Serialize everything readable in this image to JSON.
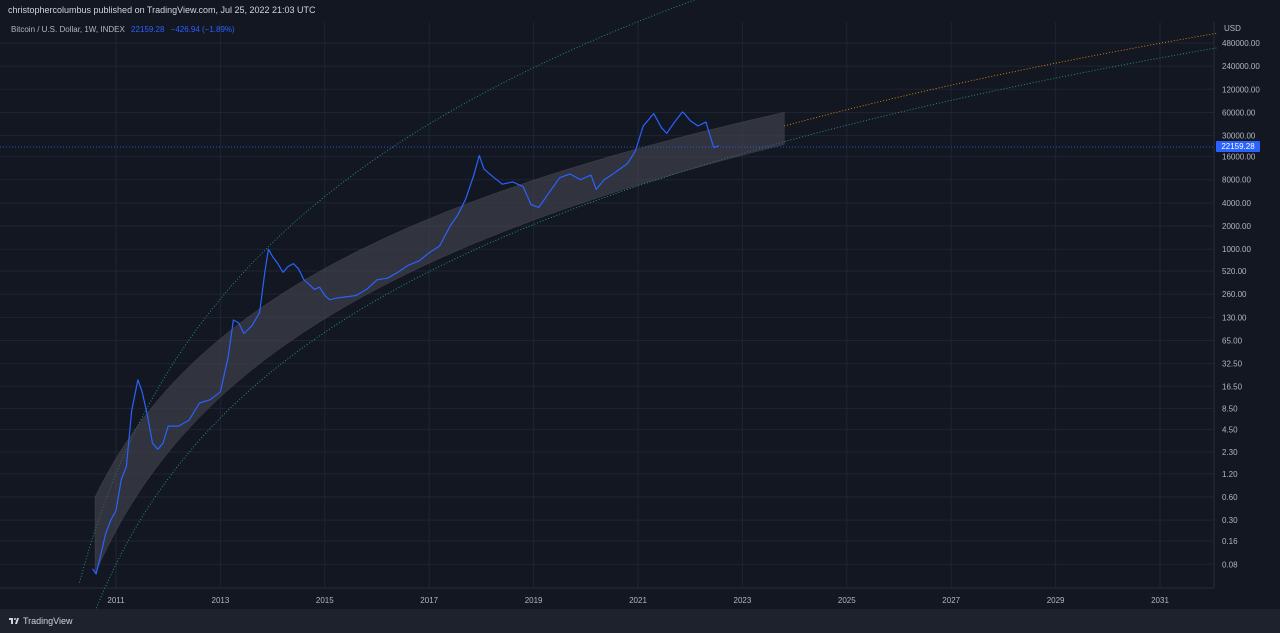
{
  "header": {
    "published": "christophercolumbus published on TradingView.com, Jul 25, 2022 21:03 UTC"
  },
  "legend": {
    "symbol": "Bitcoin / U.S. Dollar, 1W, INDEX",
    "price": "22159.28",
    "change": "−426.94 (−1.89%)"
  },
  "price_axis": {
    "currency": "USD",
    "last_price_label": "22159.28"
  },
  "footer": {
    "brand": "TradingView"
  },
  "colors": {
    "background": "#131722",
    "price_line": "#2962ff",
    "band_fill": "#4a4a55",
    "upper_curve": "#26a69a",
    "mid_curve": "#ff9800",
    "grid": "#1f2433"
  },
  "chart_data": {
    "type": "line",
    "scale": "log",
    "y_ticks": [
      "480000.00",
      "240000.00",
      "120000.00",
      "60000.00",
      "30000.00",
      "16000.00",
      "8000.00",
      "4000.00",
      "2000.00",
      "1000.00",
      "520.00",
      "260.00",
      "130.00",
      "65.00",
      "32.50",
      "16.50",
      "8.50",
      "4.50",
      "2.30",
      "1.20",
      "0.60",
      "0.30",
      "0.16",
      "0.08"
    ],
    "x_ticks": [
      "2011",
      "2013",
      "2015",
      "2017",
      "2019",
      "2021",
      "2023",
      "2025",
      "2027",
      "2029",
      "2031"
    ],
    "series": [
      {
        "x": [
          2010.55,
          2010.62,
          2010.7,
          2010.8,
          2010.9,
          2011.0,
          2011.1,
          2011.2,
          2011.3,
          2011.42,
          2011.5,
          2011.6,
          2011.7,
          2011.8,
          2011.9,
          2012.0,
          2012.2,
          2012.4,
          2012.6,
          2012.8,
          2013.0,
          2013.15,
          2013.25,
          2013.35,
          2013.45,
          2013.6,
          2013.75,
          2013.85,
          2013.92,
          2014.0,
          2014.1,
          2014.2,
          2014.3,
          2014.4,
          2014.5,
          2014.6,
          2014.7,
          2014.8,
          2014.9,
          2015.0,
          2015.1,
          2015.2,
          2015.4,
          2015.6,
          2015.8,
          2016.0,
          2016.2,
          2016.4,
          2016.6,
          2016.8,
          2017.0,
          2017.2,
          2017.4,
          2017.55,
          2017.7,
          2017.85,
          2017.96,
          2018.05,
          2018.2,
          2018.4,
          2018.6,
          2018.8,
          2018.95,
          2019.1,
          2019.3,
          2019.5,
          2019.7,
          2019.9,
          2020.1,
          2020.2,
          2020.35,
          2020.5,
          2020.65,
          2020.8,
          2020.95,
          2021.1,
          2021.3,
          2021.45,
          2021.55,
          2021.7,
          2021.85,
          2021.9,
          2022.0,
          2022.15,
          2022.3,
          2022.45,
          2022.55
        ],
        "y": [
          0.07,
          0.06,
          0.1,
          0.2,
          0.3,
          0.4,
          1,
          1.5,
          8,
          20,
          14,
          7,
          3,
          2.5,
          3,
          5,
          5,
          6,
          10,
          11,
          14,
          40,
          120,
          110,
          80,
          100,
          150,
          500,
          1000,
          800,
          650,
          500,
          600,
          650,
          550,
          400,
          350,
          300,
          320,
          250,
          220,
          230,
          240,
          250,
          300,
          400,
          420,
          500,
          620,
          700,
          900,
          1100,
          2000,
          2800,
          4500,
          9000,
          16500,
          11000,
          9000,
          7000,
          7500,
          6500,
          3800,
          3500,
          5500,
          8500,
          9500,
          8000,
          9200,
          6000,
          8000,
          9300,
          11000,
          13000,
          19000,
          40000,
          58000,
          38000,
          32000,
          45000,
          61000,
          57000,
          47000,
          40000,
          45000,
          21000,
          22159
        ]
      }
    ]
  }
}
